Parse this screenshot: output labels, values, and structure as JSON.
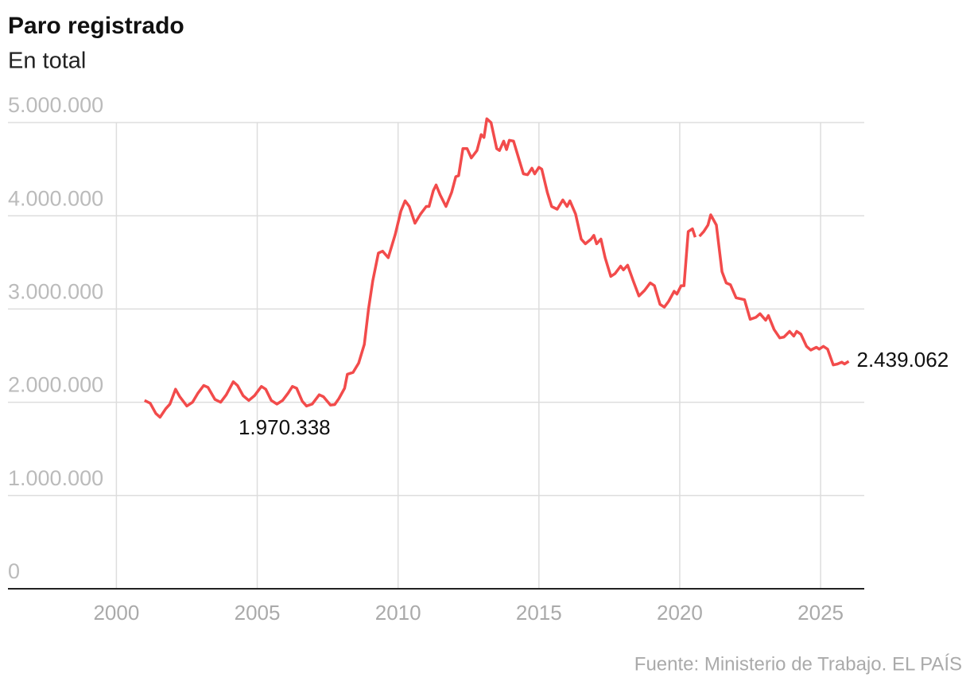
{
  "chart_data": {
    "type": "line",
    "title": "Paro registrado",
    "subtitle": "En total",
    "source": "Fuente: Ministerio de Trabajo. EL PAÍS",
    "x": [
      2001.0,
      2001.2,
      2001.4,
      2001.55,
      2001.75,
      2001.9,
      2002.1,
      2002.25,
      2002.5,
      2002.7,
      2002.9,
      2003.1,
      2003.25,
      2003.5,
      2003.7,
      2003.9,
      2004.15,
      2004.3,
      2004.5,
      2004.7,
      2004.9,
      2005.15,
      2005.3,
      2005.5,
      2005.7,
      2005.9,
      2006.1,
      2006.25,
      2006.4,
      2006.6,
      2006.75,
      2006.95,
      2007.2,
      2007.35,
      2007.6,
      2007.75,
      2007.9,
      2008.1,
      2008.2,
      2008.4,
      2008.6,
      2008.8,
      2008.95,
      2009.1,
      2009.3,
      2009.45,
      2009.65,
      2009.9,
      2010.1,
      2010.25,
      2010.4,
      2010.6,
      2010.8,
      2011.0,
      2011.1,
      2011.25,
      2011.35,
      2011.5,
      2011.7,
      2011.9,
      2012.05,
      2012.15,
      2012.3,
      2012.45,
      2012.6,
      2012.8,
      2012.95,
      2013.05,
      2013.15,
      2013.3,
      2013.5,
      2013.6,
      2013.75,
      2013.85,
      2013.95,
      2014.1,
      2014.25,
      2014.45,
      2014.6,
      2014.75,
      2014.85,
      2015.0,
      2015.1,
      2015.3,
      2015.45,
      2015.65,
      2015.85,
      2016.0,
      2016.1,
      2016.3,
      2016.5,
      2016.65,
      2016.85,
      2016.95,
      2017.05,
      2017.2,
      2017.35,
      2017.55,
      2017.7,
      2017.9,
      2018.0,
      2018.15,
      2018.35,
      2018.55,
      2018.75,
      2018.95,
      2019.1,
      2019.3,
      2019.45,
      2019.6,
      2019.8,
      2019.9,
      2020.05,
      2020.15,
      2020.3,
      2020.45,
      2020.55,
      2020.62,
      2020.7,
      2020.85,
      2021.0,
      2021.1,
      2021.3,
      2021.5,
      2021.65,
      2021.8,
      2022.0,
      2022.3,
      2022.5,
      2022.7,
      2022.85,
      2023.05,
      2023.15,
      2023.35,
      2023.55,
      2023.7,
      2023.9,
      2024.05,
      2024.15,
      2024.3,
      2024.5,
      2024.65,
      2024.85,
      2024.95,
      2025.1,
      2025.25,
      2025.45,
      2025.6,
      2025.75,
      2025.85,
      2026.0
    ],
    "series": [
      {
        "color": "#f24b4b",
        "values": [
          2020000,
          1990000,
          1880000,
          1840000,
          1930000,
          1980000,
          2140000,
          2060000,
          1960000,
          2000000,
          2100000,
          2180000,
          2160000,
          2030000,
          2000000,
          2080000,
          2220000,
          2180000,
          2070000,
          2020000,
          2070000,
          2170000,
          2140000,
          2020000,
          1980000,
          2020000,
          2100000,
          2170000,
          2150000,
          2010000,
          1960000,
          1980000,
          2080000,
          2060000,
          1970338,
          1975000,
          2040000,
          2150000,
          2300000,
          2320000,
          2420000,
          2620000,
          3000000,
          3300000,
          3600000,
          3620000,
          3550000,
          3800000,
          4050000,
          4160000,
          4100000,
          3920000,
          4020000,
          4100000,
          4100000,
          4270000,
          4330000,
          4220000,
          4100000,
          4250000,
          4420000,
          4430000,
          4720000,
          4720000,
          4620000,
          4700000,
          4870000,
          4840000,
          5040000,
          5000000,
          4720000,
          4700000,
          4800000,
          4710000,
          4810000,
          4800000,
          4650000,
          4450000,
          4440000,
          4510000,
          4450000,
          4520000,
          4500000,
          4250000,
          4100000,
          4070000,
          4170000,
          4100000,
          4160000,
          4020000,
          3750000,
          3700000,
          3750000,
          3790000,
          3700000,
          3750000,
          3550000,
          3350000,
          3380000,
          3460000,
          3420000,
          3470000,
          3300000,
          3140000,
          3200000,
          3280000,
          3250000,
          3050000,
          3020000,
          3080000,
          3190000,
          3160000,
          3250000,
          3250000,
          3830000,
          3860000,
          3770000,
          null,
          3780000,
          3830000,
          3900000,
          4010000,
          3900000,
          3400000,
          3280000,
          3260000,
          3120000,
          3100000,
          2890000,
          2910000,
          2950000,
          2880000,
          2930000,
          2780000,
          2690000,
          2700000,
          2760000,
          2710000,
          2760000,
          2730000,
          2600000,
          2560000,
          2590000,
          2570000,
          2600000,
          2570000,
          2400000,
          2410000,
          2430000,
          2410000,
          2439062
        ]
      }
    ],
    "annotations": [
      {
        "x": 2007.6,
        "value": 1970338,
        "label": "1.970.338"
      },
      {
        "x": 2026.0,
        "value": 2439062,
        "label": "2.439.062"
      }
    ],
    "xlim": [
      1996.15,
      2026.55
    ],
    "xticks": [
      2000,
      2005,
      2010,
      2015,
      2020,
      2025
    ],
    "ylim": [
      0,
      5000000
    ],
    "yticks": [
      0,
      {
        "value": 1000000,
        "label": "1.000.000"
      },
      {
        "value": 2000000,
        "label": "2.000.000"
      },
      {
        "value": 3000000,
        "label": "3.000.000"
      },
      {
        "value": 4000000,
        "label": "4.000.000"
      },
      {
        "value": 5000000,
        "label": "5.000.000"
      }
    ],
    "grid": true
  }
}
